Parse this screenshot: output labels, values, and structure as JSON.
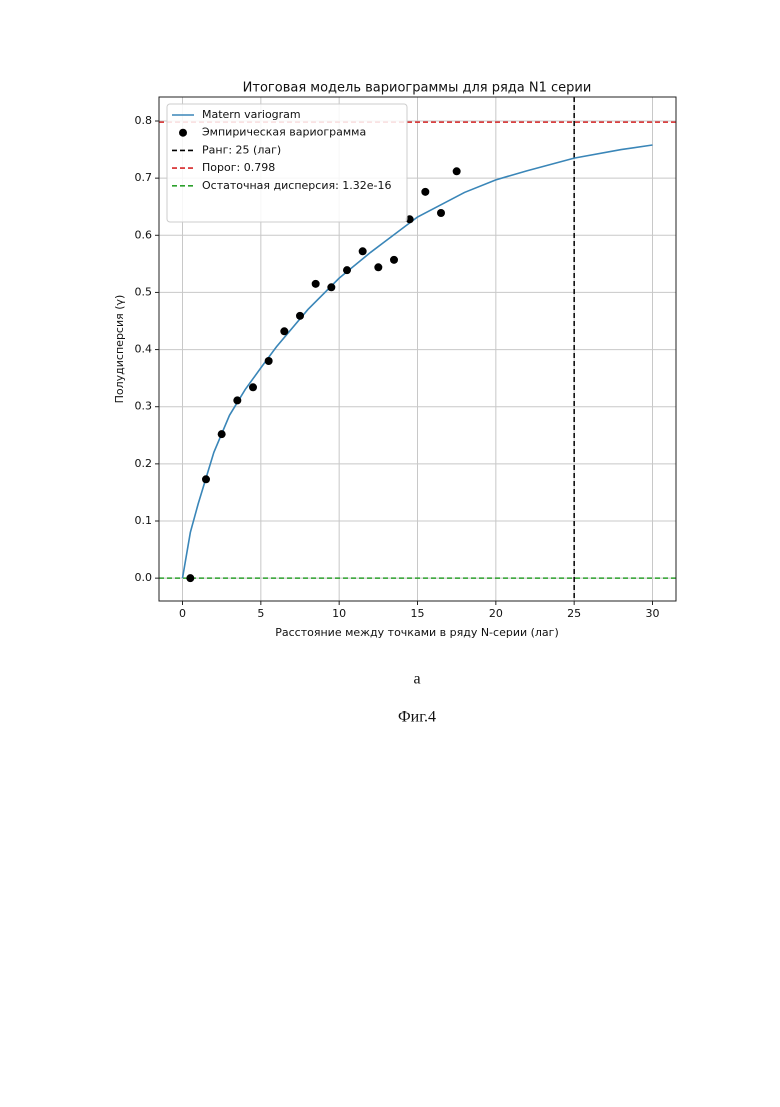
{
  "chart_data": {
    "type": "scatter_line",
    "title": "Итоговая модель вариограммы для ряда N1 серии",
    "x_label": "Расстояние между точками в ряду N-серии (лаг)",
    "y_label": "Полудисперсия (γ)",
    "xlim": [
      -1.5,
      31.5
    ],
    "ylim": [
      -0.04,
      0.842
    ],
    "xticks": [
      0,
      5,
      10,
      15,
      20,
      25,
      30
    ],
    "yticks": [
      {
        "value": 0,
        "label": "0.0"
      },
      0.1,
      0.2,
      0.3,
      0.4,
      0.5,
      0.6,
      0.7,
      0.8
    ],
    "grid": true,
    "legend": "upper left",
    "series": [
      {
        "name": "Matern variogram",
        "kind": "line",
        "color": "#3a86b8",
        "x": [
          0,
          0.5,
          1,
          2,
          3,
          4,
          5,
          6,
          8,
          10,
          12,
          15,
          18,
          20,
          22,
          25,
          28,
          30
        ],
        "values": [
          0,
          0.08,
          0.13,
          0.22,
          0.285,
          0.33,
          0.368,
          0.405,
          0.47,
          0.525,
          0.57,
          0.632,
          0.675,
          0.697,
          0.713,
          0.735,
          0.75,
          0.758
        ]
      },
      {
        "name": "Эмпирическая вариограмма",
        "kind": "scatter",
        "color": "#000000",
        "x": [
          0.5,
          1.5,
          2.5,
          3.5,
          4.5,
          5.5,
          6.5,
          7.5,
          8.5,
          9.5,
          10.5,
          11.5,
          12.5,
          13.5,
          14.5,
          15.5,
          16.5,
          17.5
        ],
        "values": [
          0,
          0.173,
          0.252,
          0.311,
          0.334,
          0.38,
          0.432,
          0.459,
          0.515,
          0.509,
          0.539,
          0.572,
          0.544,
          0.557,
          0.628,
          0.676,
          0.639,
          0.712
        ]
      }
    ],
    "reference_lines": [
      {
        "name": "Ранг: 25 (лаг)",
        "axis": "x",
        "value": 25,
        "color": "#000000"
      },
      {
        "name": "Порог: 0.798",
        "axis": "y",
        "value": 0.798,
        "color": "#d62728"
      },
      {
        "name": "Остаточная дисперсия: 1.32e-16",
        "axis": "y",
        "value": 1.32e-16,
        "color": "#2ca02c"
      }
    ]
  },
  "captions": {
    "panel": "а",
    "figure": "Фиг.4"
  }
}
